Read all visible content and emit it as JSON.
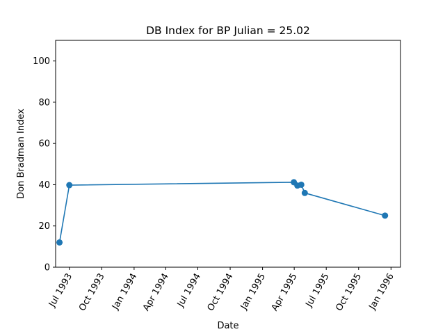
{
  "chart_data": {
    "type": "line",
    "title": "DB Index for BP Julian = 25.02",
    "xlabel": "Date",
    "ylabel": "Don Bradman Index",
    "xlim": [
      "1993-05-23",
      "1996-01-28"
    ],
    "ylim": [
      0,
      110
    ],
    "grid": false,
    "x_ticks": [
      {
        "date": "1993-07-01",
        "label": "Jul 1993"
      },
      {
        "date": "1993-10-01",
        "label": "Oct 1993"
      },
      {
        "date": "1994-01-01",
        "label": "Jan 1994"
      },
      {
        "date": "1994-04-01",
        "label": "Apr 1994"
      },
      {
        "date": "1994-07-01",
        "label": "Jul 1994"
      },
      {
        "date": "1994-10-01",
        "label": "Oct 1994"
      },
      {
        "date": "1995-01-01",
        "label": "Jan 1995"
      },
      {
        "date": "1995-04-01",
        "label": "Apr 1995"
      },
      {
        "date": "1995-07-01",
        "label": "Jul 1995"
      },
      {
        "date": "1995-10-01",
        "label": "Oct 1995"
      },
      {
        "date": "1996-01-01",
        "label": "Jan 1996"
      }
    ],
    "y_ticks": [
      0,
      20,
      40,
      60,
      80,
      100
    ],
    "series": [
      {
        "color": "#1f77b4",
        "points": [
          {
            "date": "1993-06-03",
            "value": 12.0
          },
          {
            "date": "1993-07-01",
            "value": 39.8
          },
          {
            "date": "1995-03-31",
            "value": 41.2
          },
          {
            "date": "1995-04-10",
            "value": 39.6
          },
          {
            "date": "1995-04-21",
            "value": 40.0
          },
          {
            "date": "1995-05-01",
            "value": 36.0
          },
          {
            "date": "1995-12-15",
            "value": 25.02
          }
        ]
      }
    ]
  }
}
